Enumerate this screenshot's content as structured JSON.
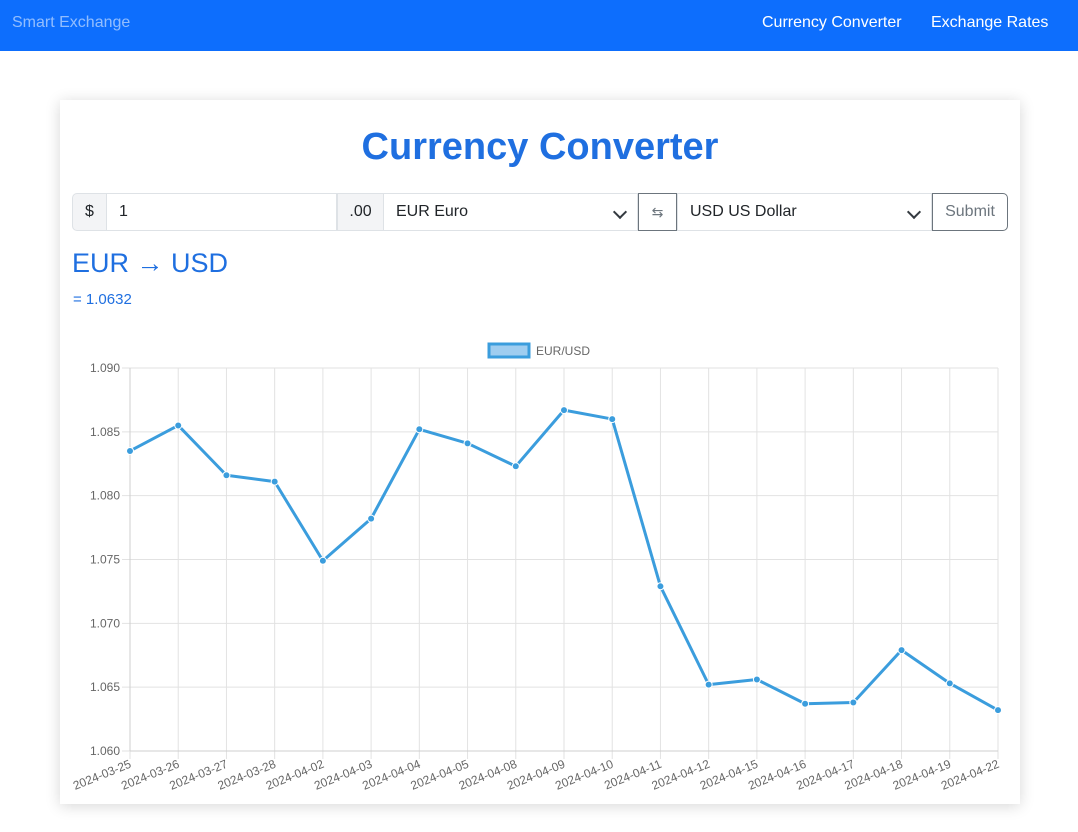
{
  "nav": {
    "brand": "Smart Exchange",
    "links": [
      "Currency Converter",
      "Exchange Rates"
    ]
  },
  "converter": {
    "title": "Currency Converter",
    "currency_symbol": "$",
    "amount": "1",
    "cents": ".00",
    "from": "EUR Euro",
    "swap_icon": "⇆",
    "to": "USD US Dollar",
    "submit_label": "Submit",
    "pair": "EUR → USD",
    "rate": "= 1.0632"
  },
  "colors": {
    "navbar": "#0d6efd",
    "accent": "#1f6fe0",
    "series": "#3b9ddd"
  },
  "chart_data": {
    "type": "line",
    "legend_position": "top",
    "grid": true,
    "ylim": [
      1.06,
      1.09
    ],
    "yticks": [
      "1.090",
      "1.085",
      "1.080",
      "1.075",
      "1.070",
      "1.065",
      "1.060"
    ],
    "x": [
      "2024-03-25",
      "2024-03-26",
      "2024-03-27",
      "2024-03-28",
      "2024-04-02",
      "2024-04-03",
      "2024-04-04",
      "2024-04-05",
      "2024-04-08",
      "2024-04-09",
      "2024-04-10",
      "2024-04-11",
      "2024-04-12",
      "2024-04-15",
      "2024-04-16",
      "2024-04-17",
      "2024-04-18",
      "2024-04-19",
      "2024-04-22"
    ],
    "series": [
      {
        "name": "EUR/USD",
        "values": [
          1.0835,
          1.0855,
          1.0816,
          1.0811,
          1.0749,
          1.0782,
          1.0852,
          1.0841,
          1.0823,
          1.0867,
          1.086,
          1.0729,
          1.0652,
          1.0656,
          1.0637,
          1.0638,
          1.0679,
          1.0653,
          1.0632
        ]
      }
    ]
  }
}
